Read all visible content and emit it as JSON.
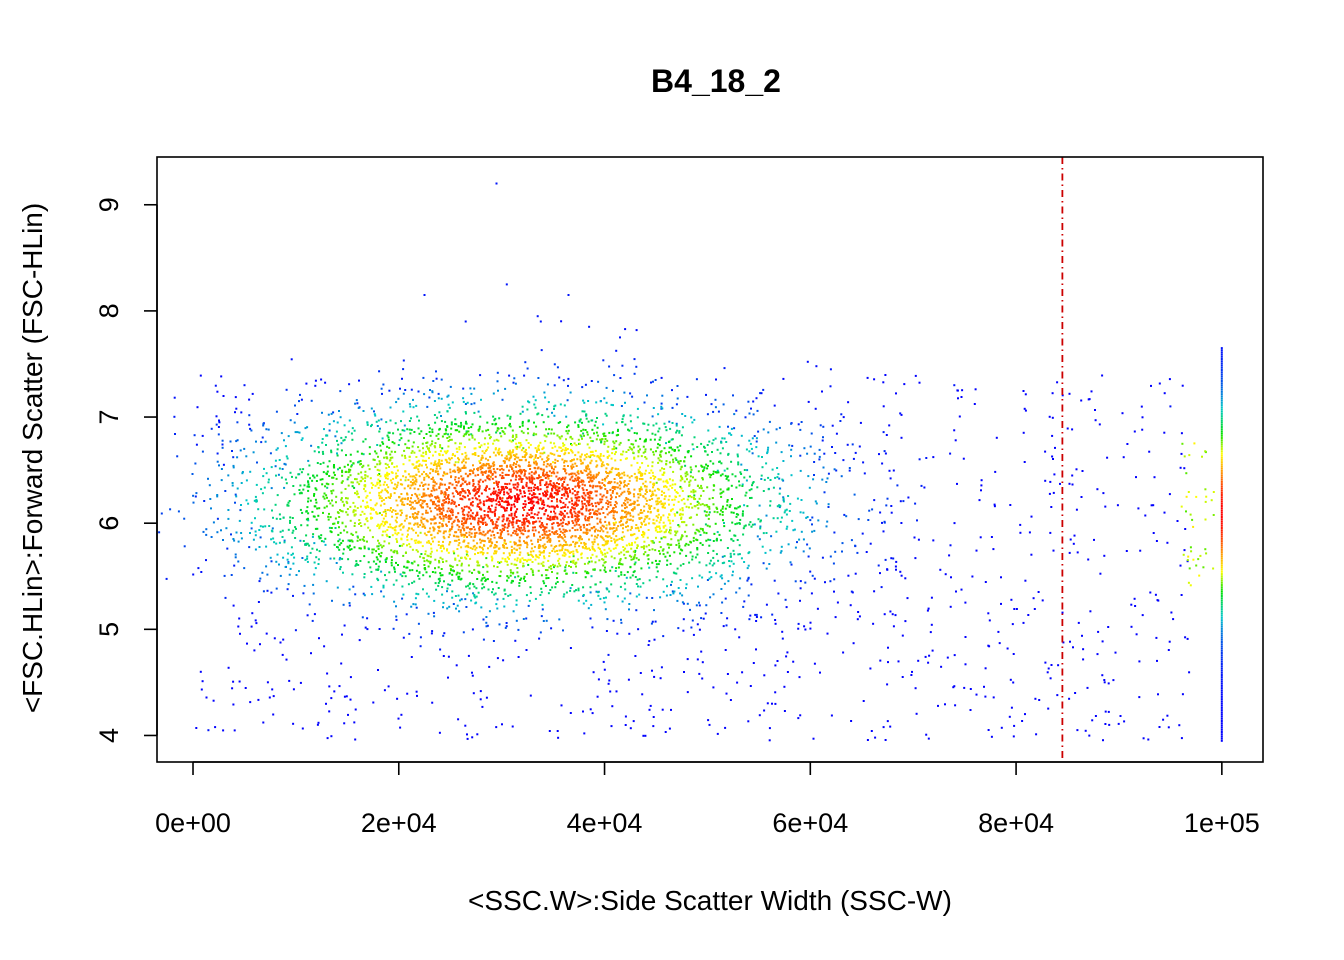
{
  "chart_data": {
    "type": "scatter",
    "title": "B4_18_2",
    "xlabel": "<SSC.W>:Side Scatter Width (SSC-W)",
    "ylabel": "<FSC.HLin>:Forward Scatter (FSC-HLin)",
    "xlim": [
      -3500,
      104000
    ],
    "ylim": [
      3.75,
      9.45
    ],
    "x_ticks": [
      {
        "value": 0,
        "label": "0e+00"
      },
      {
        "value": 20000,
        "label": "2e+04"
      },
      {
        "value": 40000,
        "label": "4e+04"
      },
      {
        "value": 60000,
        "label": "6e+04"
      },
      {
        "value": 80000,
        "label": "8e+04"
      },
      {
        "value": 100000,
        "label": "1e+05"
      }
    ],
    "y_ticks": [
      {
        "value": 4,
        "label": "4"
      },
      {
        "value": 5,
        "label": "5"
      },
      {
        "value": 6,
        "label": "6"
      },
      {
        "value": 7,
        "label": "7"
      },
      {
        "value": 8,
        "label": "8"
      },
      {
        "value": 9,
        "label": "9"
      }
    ],
    "threshold_line": {
      "x": 84500,
      "color": "#cc0000",
      "style": "dashed"
    },
    "color_scale": [
      "#0000ff",
      "#00c8c8",
      "#00e000",
      "#ffff00",
      "#ff8c00",
      "#ff0000"
    ],
    "main_cluster": {
      "x_center": 32000,
      "x_sd": 12500,
      "y_center": 6.2,
      "y_sd": 0.45,
      "count": 5200
    },
    "background_spread": {
      "x_range": [
        0,
        100000
      ],
      "y_range": [
        3.95,
        7.4
      ],
      "count": 1100
    },
    "saturation_column": {
      "x": 100000,
      "y_range": [
        3.95,
        7.65
      ]
    },
    "outliers": [
      {
        "x": 29500,
        "y": 9.2
      },
      {
        "x": 30500,
        "y": 8.25
      },
      {
        "x": 22500,
        "y": 8.15
      },
      {
        "x": 36500,
        "y": 8.15
      },
      {
        "x": 33500,
        "y": 7.95
      },
      {
        "x": 33800,
        "y": 7.9
      },
      {
        "x": 26500,
        "y": 7.9
      },
      {
        "x": 38500,
        "y": 7.85
      },
      {
        "x": 41500,
        "y": 7.75
      },
      {
        "x": 62000,
        "y": 7.45
      },
      {
        "x": 74000,
        "y": 7.3
      },
      {
        "x": 5000,
        "y": 7.3
      },
      {
        "x": 3000,
        "y": 6.55
      },
      {
        "x": 1500,
        "y": 4.05
      },
      {
        "x": 95000,
        "y": 7.1
      }
    ]
  }
}
